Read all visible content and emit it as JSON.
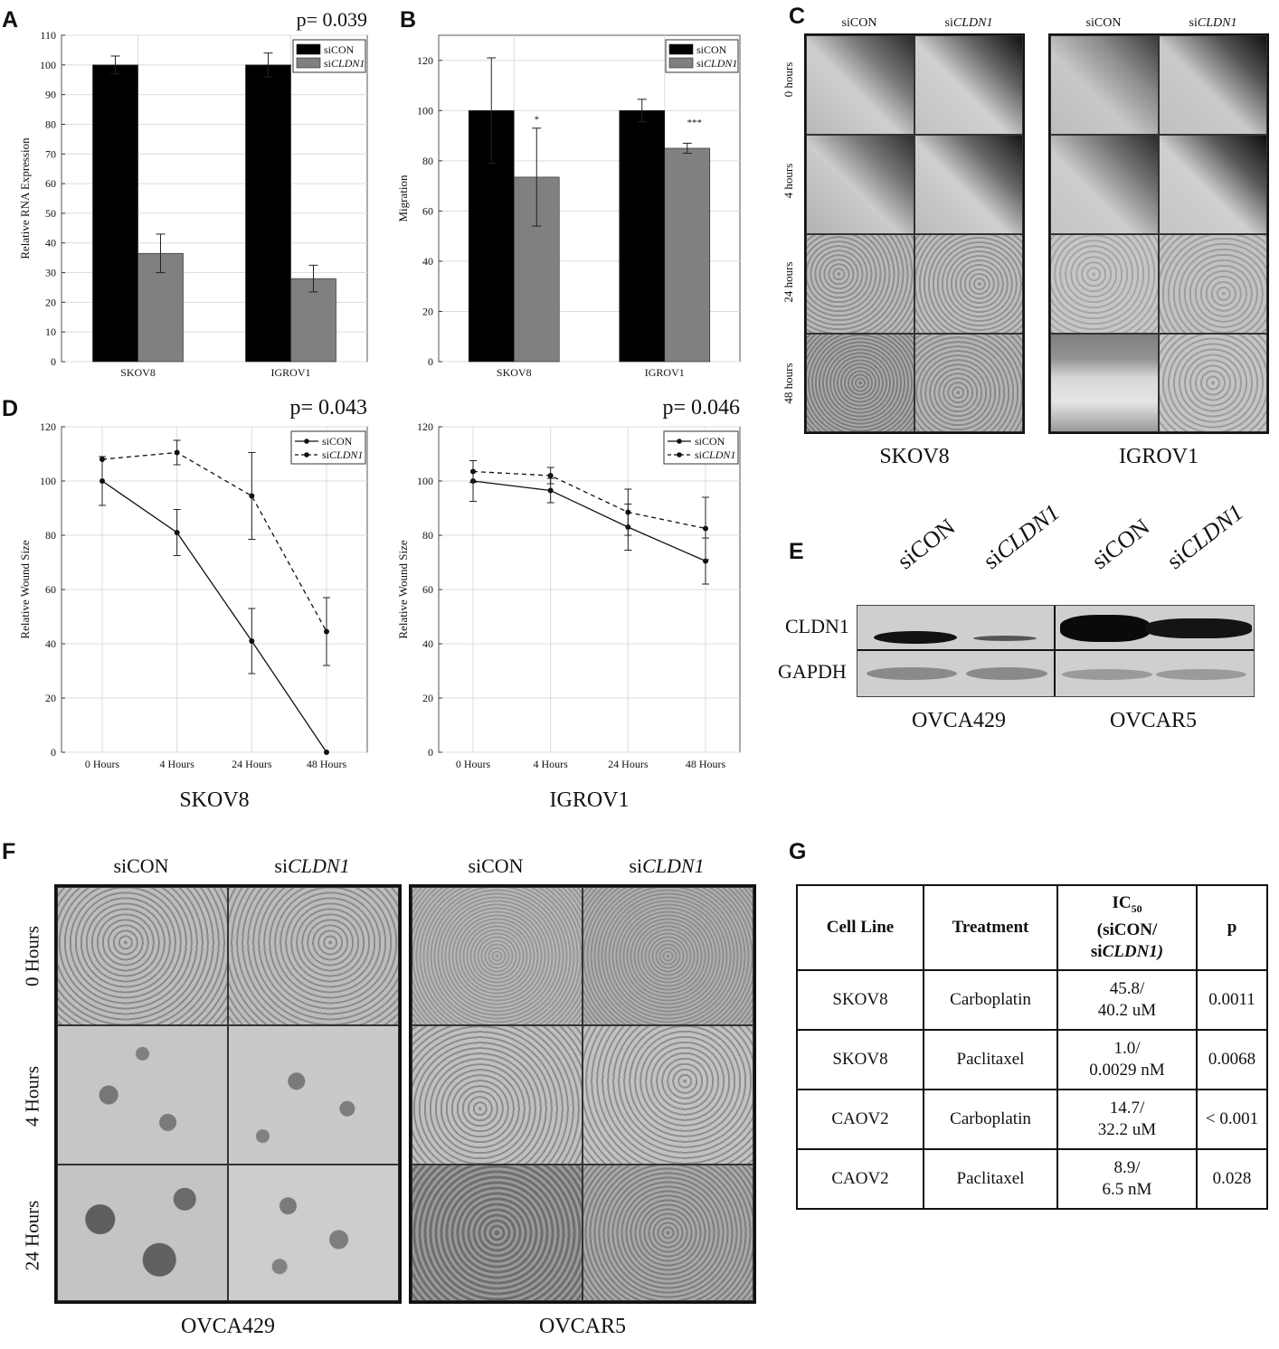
{
  "panel_labels": {
    "A": "A",
    "B": "B",
    "C": "C",
    "D": "D",
    "E": "E",
    "F": "F",
    "G": "G"
  },
  "legend": {
    "sicon": "siCON",
    "si_prefix": "si",
    "cldn1": "CLDN1"
  },
  "chart_data": [
    {
      "id": "A",
      "type": "bar",
      "annotation": "p= 0.039",
      "ylabel": "Relative RNA Expression",
      "ylim": [
        0,
        110
      ],
      "yticks": [
        0,
        10,
        20,
        30,
        40,
        50,
        60,
        70,
        80,
        90,
        100,
        110
      ],
      "categories": [
        "SKOV8",
        "IGROV1"
      ],
      "series": [
        {
          "name": "siCON",
          "values": [
            100,
            100
          ],
          "errors": [
            3,
            4
          ],
          "color": "#000000"
        },
        {
          "name": "siCLDN1",
          "values": [
            36.5,
            28
          ],
          "errors": [
            6.5,
            4.5
          ],
          "color": "#808080"
        }
      ],
      "significance": [
        "",
        ""
      ],
      "legend_position": "top-right",
      "grid": true
    },
    {
      "id": "B",
      "type": "bar",
      "annotation": "",
      "ylabel": "Migration",
      "ylim": [
        0,
        130
      ],
      "yticks": [
        0,
        20,
        40,
        60,
        80,
        100,
        120
      ],
      "categories": [
        "SKOV8",
        "IGROV1"
      ],
      "series": [
        {
          "name": "siCON",
          "values": [
            100,
            100
          ],
          "errors": [
            21,
            4.5
          ],
          "color": "#000000"
        },
        {
          "name": "siCLDN1",
          "values": [
            73.5,
            85
          ],
          "errors": [
            19.5,
            2
          ],
          "color": "#808080"
        }
      ],
      "significance": [
        "*",
        "***"
      ],
      "legend_position": "top-right",
      "grid": true
    },
    {
      "id": "D1",
      "type": "line",
      "annotation": "p= 0.043",
      "caption": "SKOV8",
      "ylabel": "Relative Wound Size",
      "ylim": [
        0,
        120
      ],
      "yticks": [
        0,
        20,
        40,
        60,
        80,
        100,
        120
      ],
      "categories": [
        "0 Hours",
        "4 Hours",
        "24 Hours",
        "48 Hours"
      ],
      "series": [
        {
          "name": "siCON",
          "values": [
            100,
            81,
            41,
            0
          ],
          "errors": [
            9,
            8.5,
            12,
            0
          ],
          "dash": false
        },
        {
          "name": "siCLDN1",
          "values": [
            108,
            110.5,
            94.5,
            44.5
          ],
          "errors": [
            0,
            4.5,
            16,
            12.5
          ],
          "dash": true
        }
      ],
      "legend_position": "top-right",
      "grid": true
    },
    {
      "id": "D2",
      "type": "line",
      "annotation": "p= 0.046",
      "caption": "IGROV1",
      "ylabel": "Relative Wound Size",
      "ylim": [
        0,
        120
      ],
      "yticks": [
        0,
        20,
        40,
        60,
        80,
        100,
        120
      ],
      "categories": [
        "0 Hours",
        "4 Hours",
        "24 Hours",
        "48 Hours"
      ],
      "series": [
        {
          "name": "siCON",
          "values": [
            100,
            96.5,
            83,
            70.5
          ],
          "errors": [
            7.5,
            4.5,
            8.5,
            8.5
          ],
          "dash": false
        },
        {
          "name": "siCLDN1",
          "values": [
            103.5,
            102,
            88.5,
            82.5
          ],
          "errors": [
            4,
            3,
            8.5,
            11.5
          ],
          "dash": true
        }
      ],
      "legend_position": "top-right",
      "grid": true
    }
  ],
  "panel_c": {
    "cols": [
      "siCON",
      "siCLDN1"
    ],
    "rows": [
      "0 hours",
      "4 hours",
      "24 hours",
      "48 hours"
    ],
    "captions": [
      "SKOV8",
      "IGROV1"
    ]
  },
  "panel_e": {
    "lanes": [
      "siCON",
      "siCLDN1",
      "siCON",
      "siCLDN1"
    ],
    "row_labels": [
      "CLDN1",
      "GAPDH"
    ],
    "captions": [
      "OVCA429",
      "OVCAR5"
    ]
  },
  "panel_f": {
    "cols": [
      "siCON",
      "siCLDN1"
    ],
    "rows": [
      "0 Hours",
      "4 Hours",
      "24 Hours"
    ],
    "captions": [
      "OVCA429",
      "OVCAR5"
    ]
  },
  "panel_g": {
    "headers": {
      "cell_line": "Cell Line",
      "treatment": "Treatment",
      "ic": "IC",
      "ic_sub": "50",
      "ic_line2": "(siCON/",
      "ic_line3_pre": "si",
      "ic_line3_it": "CLDN1)",
      "p": "p"
    },
    "rows": [
      {
        "cell": "SKOV8",
        "treat": "Carboplatin",
        "ic1": "45.8/",
        "ic2": "40.2 uM",
        "p": "0.0011"
      },
      {
        "cell": "SKOV8",
        "treat": "Paclitaxel",
        "ic1": "1.0/",
        "ic2": "0.0029 nM",
        "p": "0.0068"
      },
      {
        "cell": "CAOV2",
        "treat": "Carboplatin",
        "ic1": "14.7/",
        "ic2": "32.2 uM",
        "p": "< 0.001"
      },
      {
        "cell": "CAOV2",
        "treat": "Paclitaxel",
        "ic1": "8.9/",
        "ic2": "6.5 nM",
        "p": "0.028"
      }
    ]
  }
}
